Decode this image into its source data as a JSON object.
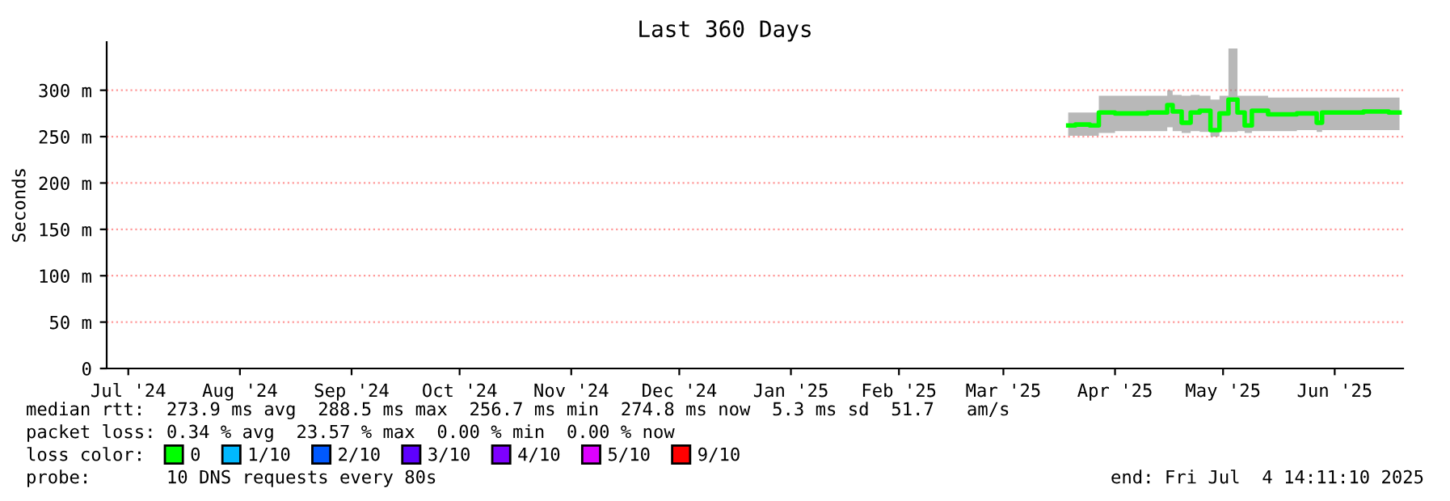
{
  "chart_data": {
    "type": "line",
    "title": "Last 360 Days",
    "ylabel": "Seconds",
    "x": [
      "2025-04-03",
      "2025-04-07",
      "2025-04-11",
      "2025-04-12",
      "2025-04-20",
      "2025-04-30",
      "2025-05-01",
      "2025-05-03",
      "2025-05-06",
      "2025-05-08",
      "2025-05-11",
      "2025-05-14",
      "2025-05-16",
      "2025-05-19",
      "2025-05-21",
      "2025-05-23",
      "2025-05-25",
      "2025-06-01",
      "2025-06-10",
      "2025-06-12",
      "2025-06-13",
      "2025-06-20",
      "2025-06-28",
      "2025-07-04"
    ],
    "series": [
      {
        "name": "0",
        "color": "#00ff00",
        "values": [
          262,
          263,
          262,
          276,
          275,
          276,
          284,
          277,
          265,
          276,
          278,
          257,
          275,
          290,
          276,
          262,
          278,
          274,
          275,
          265,
          276,
          276,
          277,
          276
        ],
        "lower": [
          251,
          251,
          251,
          254,
          256,
          256,
          260,
          256,
          254,
          256,
          255,
          250,
          255,
          255,
          256,
          254,
          256,
          256,
          257,
          255,
          257,
          257,
          257,
          257
        ],
        "upper": [
          276,
          276,
          276,
          294,
          294,
          294,
          300,
          295,
          294,
          295,
          294,
          290,
          294,
          345,
          294,
          294,
          294,
          292,
          292,
          292,
          292,
          292,
          292,
          292
        ]
      },
      {
        "name": "1/10",
        "color": "#00b8ff",
        "values": [
          null,
          null,
          null,
          null,
          null,
          null,
          null,
          null,
          null,
          null,
          null,
          null,
          null,
          null,
          null,
          null,
          null,
          null,
          null,
          null,
          null,
          null,
          null,
          null
        ]
      },
      {
        "name": "2/10",
        "color": "#0059ff",
        "values": [
          null,
          null,
          null,
          null,
          null,
          null,
          null,
          null,
          null,
          null,
          null,
          null,
          null,
          null,
          null,
          null,
          null,
          null,
          null,
          null,
          null,
          null,
          null,
          null
        ]
      },
      {
        "name": "3/10",
        "color": "#5e00ff",
        "values": [
          null,
          null,
          null,
          null,
          null,
          null,
          null,
          null,
          null,
          null,
          null,
          null,
          null,
          null,
          null,
          null,
          null,
          null,
          null,
          null,
          null,
          null,
          null,
          null
        ]
      },
      {
        "name": "4/10",
        "color": "#7e00ff",
        "values": [
          null,
          null,
          null,
          null,
          null,
          null,
          null,
          null,
          null,
          null,
          null,
          null,
          null,
          null,
          null,
          null,
          null,
          null,
          null,
          null,
          null,
          null,
          null,
          null
        ]
      },
      {
        "name": "5/10",
        "color": "#dd00ff",
        "values": [
          null,
          null,
          null,
          null,
          null,
          null,
          null,
          null,
          null,
          null,
          null,
          null,
          null,
          null,
          null,
          null,
          null,
          null,
          null,
          null,
          null,
          null,
          null,
          null
        ]
      },
      {
        "name": "9/10",
        "color": "#ff0000",
        "values": [
          null,
          null,
          null,
          null,
          null,
          null,
          null,
          null,
          null,
          null,
          null,
          null,
          null,
          null,
          null,
          null,
          null,
          null,
          null,
          null,
          null,
          null,
          null,
          null
        ]
      }
    ],
    "legend": "bottom",
    "legend_title": "loss color:",
    "xlim": [
      "2024-07-10",
      "2025-07-05"
    ],
    "xticks": [
      {
        "value": "2024-07-16",
        "label": "Jul '24"
      },
      {
        "value": "2024-08-16",
        "label": "Aug '24"
      },
      {
        "value": "2024-09-16",
        "label": "Sep '24"
      },
      {
        "value": "2024-10-16",
        "label": "Oct '24"
      },
      {
        "value": "2024-11-16",
        "label": "Nov '24"
      },
      {
        "value": "2024-12-16",
        "label": "Dec '24"
      },
      {
        "value": "2025-01-16",
        "label": "Jan '25"
      },
      {
        "value": "2025-02-15",
        "label": "Feb '25"
      },
      {
        "value": "2025-03-16",
        "label": "Mar '25"
      },
      {
        "value": "2025-04-16",
        "label": "Apr '25"
      },
      {
        "value": "2025-05-16",
        "label": "May '25"
      },
      {
        "value": "2025-06-16",
        "label": "Jun '25"
      }
    ],
    "ylim": [
      0,
      352
    ],
    "yticks": [
      0,
      {
        "value": 50,
        "label": "50 m"
      },
      {
        "value": 100,
        "label": "100 m"
      },
      {
        "value": 150,
        "label": "150 m"
      },
      {
        "value": 200,
        "label": "200 m"
      },
      {
        "value": 250,
        "label": "250 m"
      },
      {
        "value": 300,
        "label": "300 m"
      }
    ],
    "grid": "y",
    "marker": "none",
    "line_style": "solid",
    "annotations": [
      "median rtt:  273.9 ms avg  288.5 ms max  256.7 ms min  274.8 ms now  5.3 ms sd  51.7   am/s",
      "packet loss: 0.34 % avg  23.57 % max  0.00 % min  0.00 % now",
      "probe:       10 DNS requests every 80s",
      "end: Fri Jul  4 14:11:10 2025"
    ]
  }
}
